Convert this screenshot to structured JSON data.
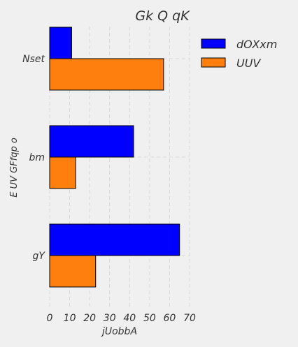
{
  "chart_data": {
    "type": "bar",
    "orientation": "horizontal",
    "title": "Gk  Q qK",
    "xlabel": "jUobbA",
    "ylabel": "E UV GFfqp o",
    "categories": [
      "Nset",
      "bm",
      "gY"
    ],
    "series": [
      {
        "name": "dOXxm",
        "values": [
          11,
          42,
          65
        ],
        "color": "#0000ff"
      },
      {
        "name": "UUV",
        "values": [
          57,
          13,
          23
        ],
        "color": "#ff7f0e"
      }
    ],
    "xlim": [
      0,
      70
    ],
    "xticks": [
      0,
      10,
      20,
      30,
      40,
      50,
      60,
      70
    ],
    "grid": true,
    "legend": "top-right"
  }
}
